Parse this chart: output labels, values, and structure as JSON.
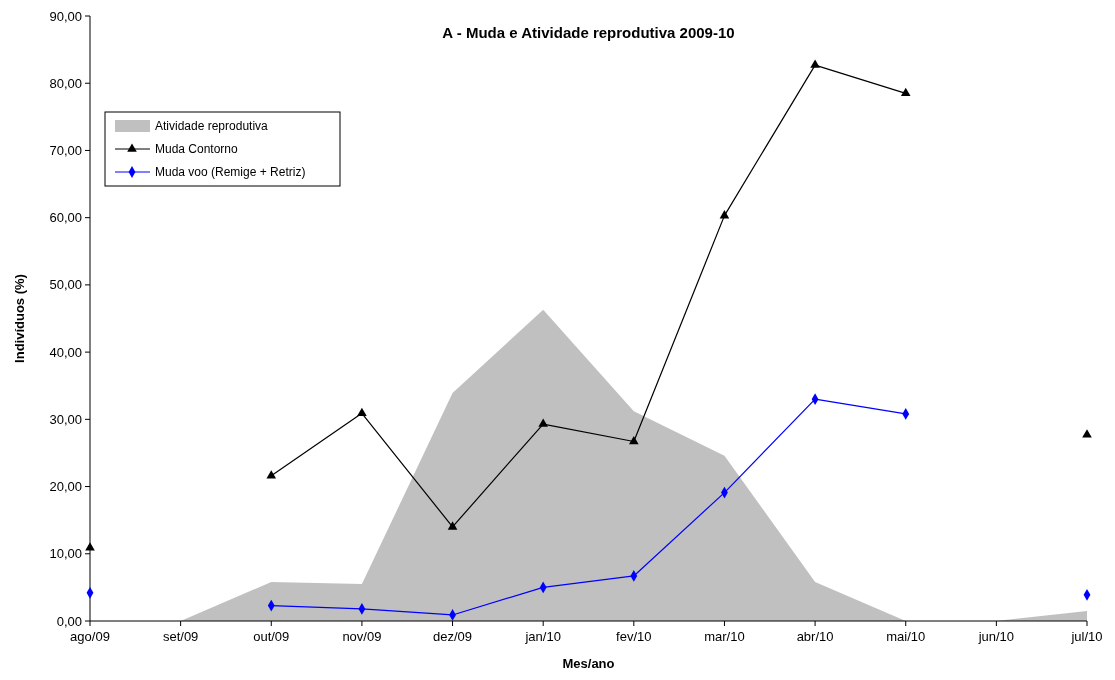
{
  "chart_data": {
    "type": "line",
    "title": "A - Muda e Atividade reprodutiva 2009-10",
    "xlabel": "Mes/ano",
    "ylabel": "Indivíduos (%)",
    "categories": [
      "ago/09",
      "set/09",
      "out/09",
      "nov/09",
      "dez/09",
      "jan/10",
      "fev/10",
      "mar/10",
      "abr/10",
      "mai/10",
      "jun/10",
      "jul/10"
    ],
    "ylim": [
      0,
      90
    ],
    "yticks": [
      {
        "value": 0,
        "label": "0,00"
      },
      {
        "value": 10,
        "label": "10,00"
      },
      {
        "value": 20,
        "label": "20,00"
      },
      {
        "value": 30,
        "label": "30,00"
      },
      {
        "value": 40,
        "label": "40,00"
      },
      {
        "value": 50,
        "label": "50,00"
      },
      {
        "value": 60,
        "label": "60,00"
      },
      {
        "value": 70,
        "label": "70,00"
      },
      {
        "value": 80,
        "label": "80,00"
      },
      {
        "value": 90,
        "label": "90,00"
      }
    ],
    "legend": "top left",
    "grid": false,
    "series": [
      {
        "name": "Atividade reprodutiva",
        "type": "area",
        "color": "#c0c0c0",
        "values": [
          null,
          0,
          5.8,
          5.5,
          33.9,
          46.3,
          31.2,
          24.6,
          5.8,
          0,
          0,
          1.5
        ]
      },
      {
        "name": "Muda Contorno",
        "color": "#000000",
        "marker": "triangle",
        "values": [
          10.9,
          null,
          21.6,
          30.9,
          14.0,
          29.3,
          26.7,
          60.3,
          82.7,
          78.5,
          null,
          27.7
        ]
      },
      {
        "name": "Muda voo (Remige + Retriz)",
        "color": "#0000ff",
        "marker": "diamond",
        "values": [
          4.2,
          null,
          2.3,
          1.8,
          0.9,
          5.0,
          6.7,
          19.1,
          33.0,
          30.8,
          null,
          3.9
        ]
      }
    ]
  }
}
